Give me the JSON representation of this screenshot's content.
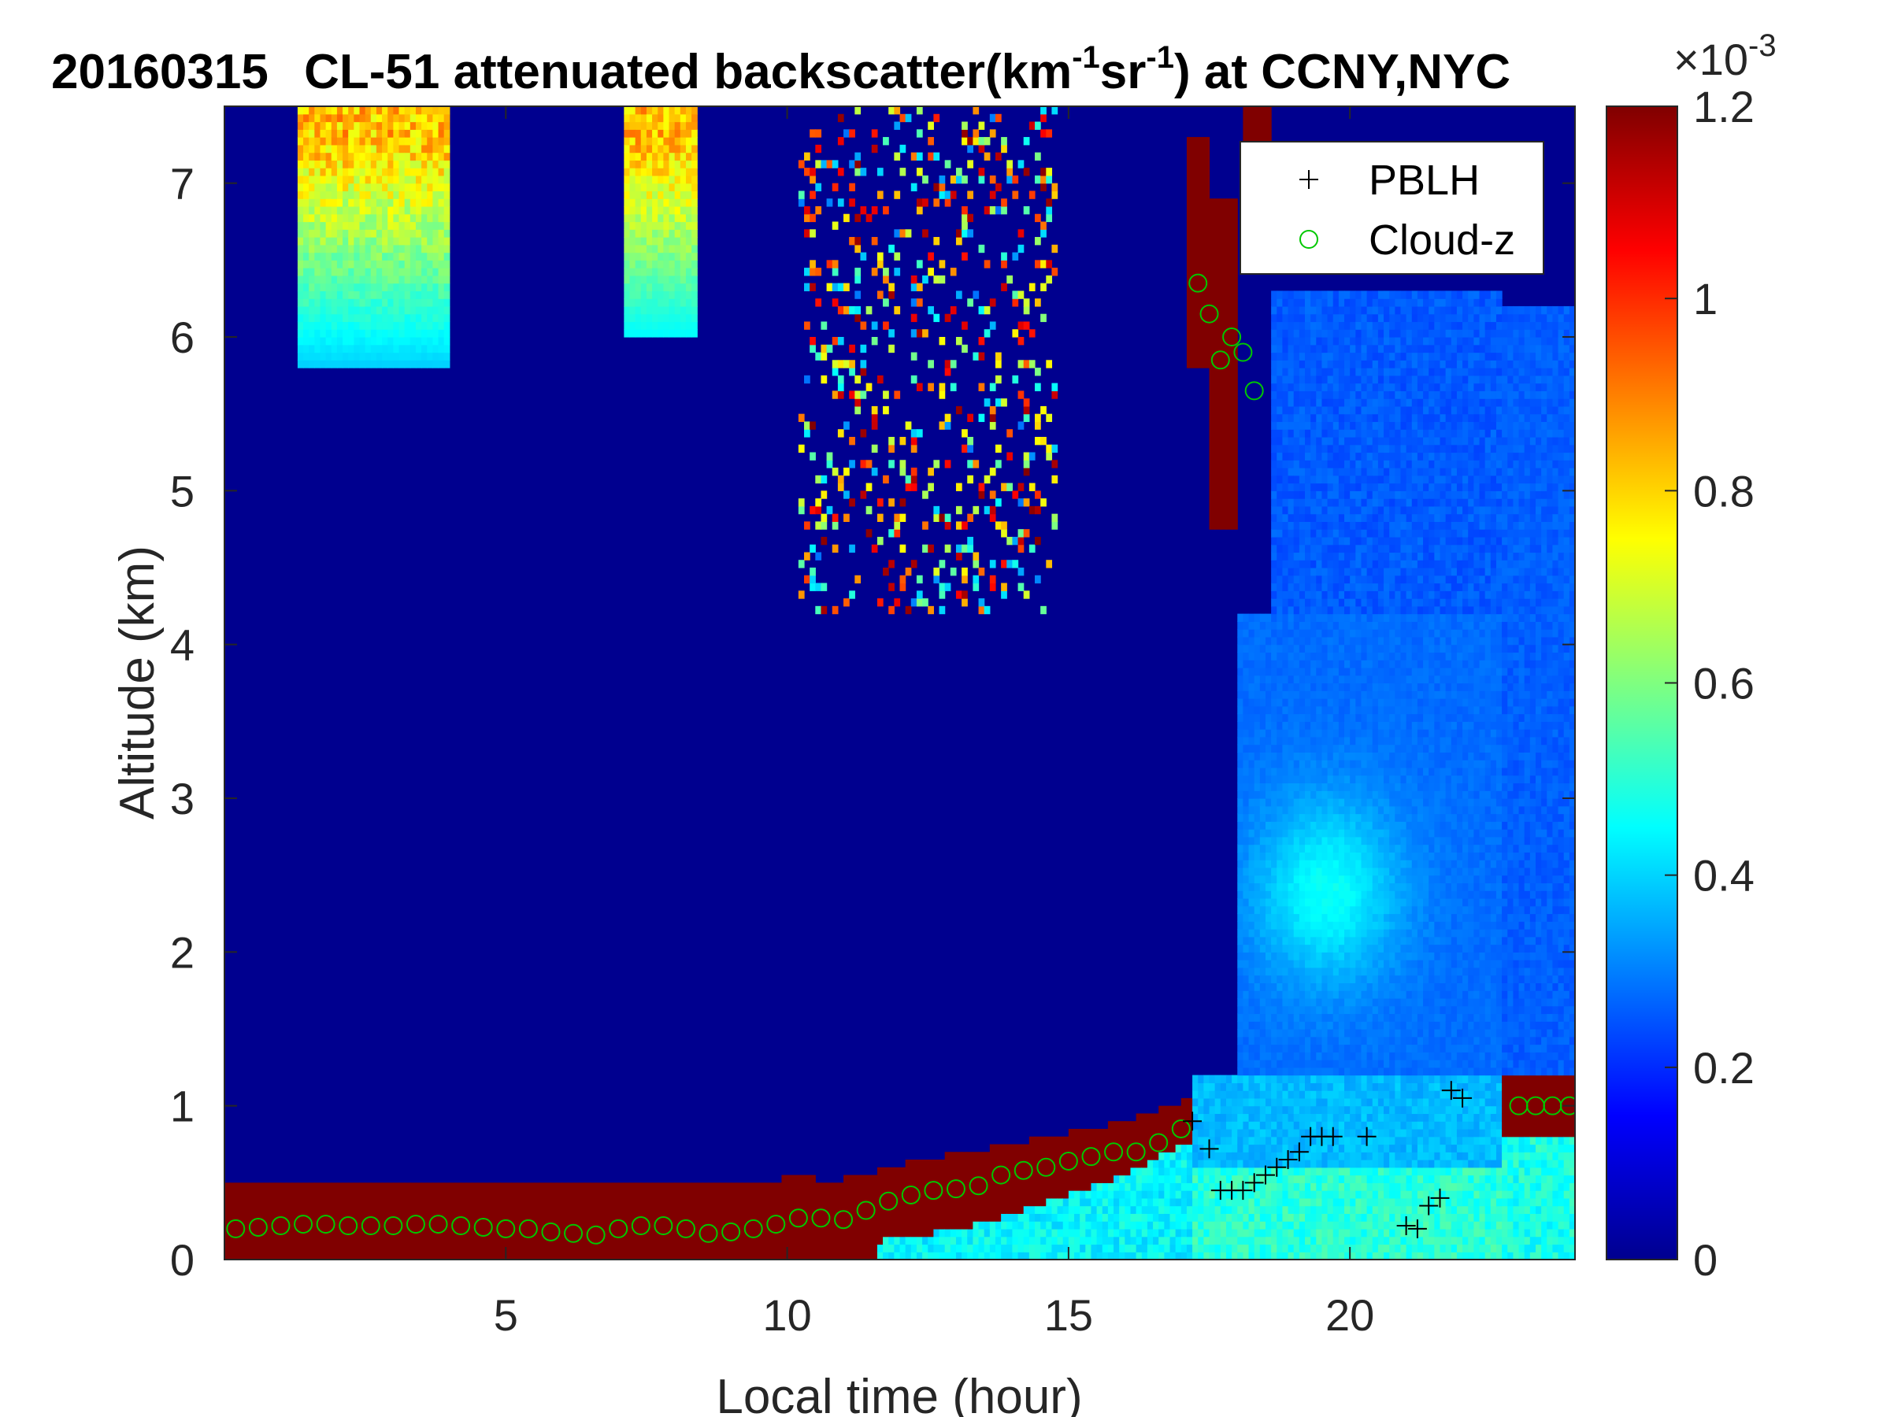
{
  "chart_data": {
    "type": "heatmap",
    "title": {
      "date": "20160315",
      "main": "CL-51 attenuated backscatter(km",
      "sup1": "-1",
      "mid": "sr",
      "sup2": "-1",
      "tail": ") at CCNY,NYC"
    },
    "xlabel": "Local time (hour)",
    "ylabel": "Altitude (km)",
    "xlim": [
      0,
      24
    ],
    "ylim": [
      0,
      7.5
    ],
    "xticks": [
      5,
      10,
      15,
      20
    ],
    "yticks": [
      0,
      1,
      2,
      3,
      4,
      5,
      6,
      7
    ],
    "colorbar": {
      "colormap": "jet",
      "range": [
        0,
        0.0012
      ],
      "ticks": [
        0,
        0.2,
        0.4,
        0.6,
        0.8,
        1,
        1.2
      ],
      "exponent_label": "×10",
      "exponent": "-3"
    },
    "legend": {
      "position": "top-right",
      "entries": [
        {
          "name": "PBLH",
          "marker": "+",
          "color": "#000000"
        },
        {
          "name": "Cloud-z",
          "marker": "o",
          "color": "#00c800"
        }
      ]
    },
    "series": [
      {
        "name": "PBLH",
        "x": [
          17.2,
          17.5,
          17.7,
          17.9,
          18.1,
          18.3,
          18.5,
          18.7,
          18.9,
          19.1,
          19.3,
          19.5,
          19.7,
          20.3,
          21.0,
          21.2,
          21.4,
          21.6,
          21.8,
          22.0
        ],
        "y": [
          0.9,
          0.72,
          0.45,
          0.45,
          0.45,
          0.5,
          0.55,
          0.6,
          0.65,
          0.7,
          0.8,
          0.8,
          0.8,
          0.8,
          0.22,
          0.2,
          0.35,
          0.4,
          1.1,
          1.05
        ]
      },
      {
        "name": "Cloud-z",
        "x": [
          0.2,
          0.6,
          1.0,
          1.4,
          1.8,
          2.2,
          2.6,
          3.0,
          3.4,
          3.8,
          4.2,
          4.6,
          5.0,
          5.4,
          5.8,
          6.2,
          6.6,
          7.0,
          7.4,
          7.8,
          8.2,
          8.6,
          9.0,
          9.4,
          9.8,
          10.2,
          10.6,
          11.0,
          11.4,
          11.8,
          12.2,
          12.6,
          13.0,
          13.4,
          13.8,
          14.2,
          14.6,
          15.0,
          15.4,
          15.8,
          16.2,
          16.6,
          17.0,
          17.3,
          17.5,
          17.7,
          17.9,
          18.1,
          18.3,
          23.0,
          23.3,
          23.6,
          23.9
        ],
        "y": [
          0.2,
          0.21,
          0.22,
          0.23,
          0.23,
          0.22,
          0.22,
          0.22,
          0.23,
          0.23,
          0.22,
          0.21,
          0.2,
          0.2,
          0.18,
          0.17,
          0.16,
          0.2,
          0.22,
          0.22,
          0.2,
          0.17,
          0.18,
          0.2,
          0.23,
          0.27,
          0.27,
          0.26,
          0.32,
          0.38,
          0.42,
          0.45,
          0.46,
          0.48,
          0.55,
          0.58,
          0.6,
          0.64,
          0.67,
          0.7,
          0.7,
          0.76,
          0.85,
          6.35,
          6.15,
          5.85,
          6.0,
          5.9,
          5.65,
          1.0,
          1.0,
          1.0,
          1.0
        ]
      }
    ]
  }
}
